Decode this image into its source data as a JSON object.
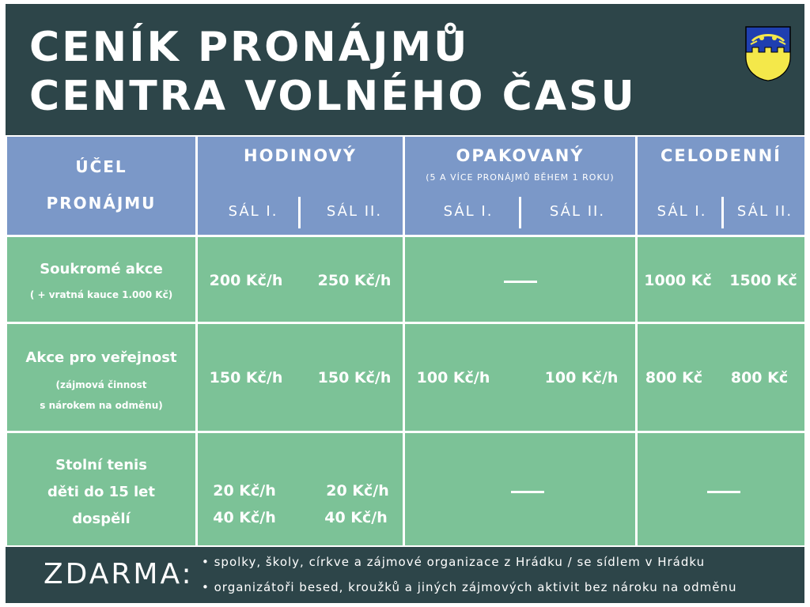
{
  "title": {
    "line1": "CENÍK PRONÁJMŮ",
    "line2": "CENTRA VOLNÉHO ČASU"
  },
  "crest": {
    "icon": "municipal-coat-of-arms",
    "colors": [
      "#1f3fb0",
      "#f4e84a",
      "#000000"
    ]
  },
  "header": {
    "purpose_line1": "ÚČEL",
    "purpose_line2": "PRONÁJMU",
    "groups": [
      {
        "title": "HODINOVÝ",
        "subtitle": "",
        "sal1": "SÁL I.",
        "sal2": "SÁL II."
      },
      {
        "title": "OPAKOVANÝ",
        "subtitle": "(5 A VÍCE PRONÁJMŮ BĚHEM 1 ROKU)",
        "sal1": "SÁL I.",
        "sal2": "SÁL II."
      },
      {
        "title": "CELODENNÍ",
        "subtitle": "",
        "sal1": "SÁL I.",
        "sal2": "SÁL II."
      }
    ]
  },
  "rows": [
    {
      "title": "Soukromé akce",
      "note1": "( + vratná kauce 1.000 Kč)",
      "note2": "",
      "hourly": [
        "200 Kč/h",
        "250 Kč/h"
      ],
      "repeated": "—",
      "daily": [
        "1000 Kč",
        "1500 Kč"
      ]
    },
    {
      "title": "Akce pro veřejnost",
      "note1": "(zájmová činnost",
      "note2": "s nárokem na odměnu)",
      "hourly": [
        "150 Kč/h",
        "150 Kč/h"
      ],
      "repeated": [
        "100 Kč/h",
        "100 Kč/h"
      ],
      "daily": [
        "800 Kč",
        "800 Kč"
      ]
    },
    {
      "title_lines": [
        "Stolní tenis",
        "děti do 15 let",
        "dospělí"
      ],
      "hourly_children": [
        "20 Kč/h",
        "20 Kč/h"
      ],
      "hourly_adults": [
        "40 Kč/h",
        "40 Kč/h"
      ],
      "repeated": "—",
      "daily": "—"
    }
  ],
  "footer": {
    "label": "ZDARMA:",
    "items": [
      "• spolky, školy, církve a zájmové organizace z Hrádku / se sídlem v Hrádku",
      "• organizátoři besed, kroužků a jiných zájmových aktivit bez nároku na odměnu"
    ]
  },
  "colors": {
    "dark": "#2d4549",
    "header_blue": "#7b98c8",
    "body_green": "#7cc297"
  }
}
